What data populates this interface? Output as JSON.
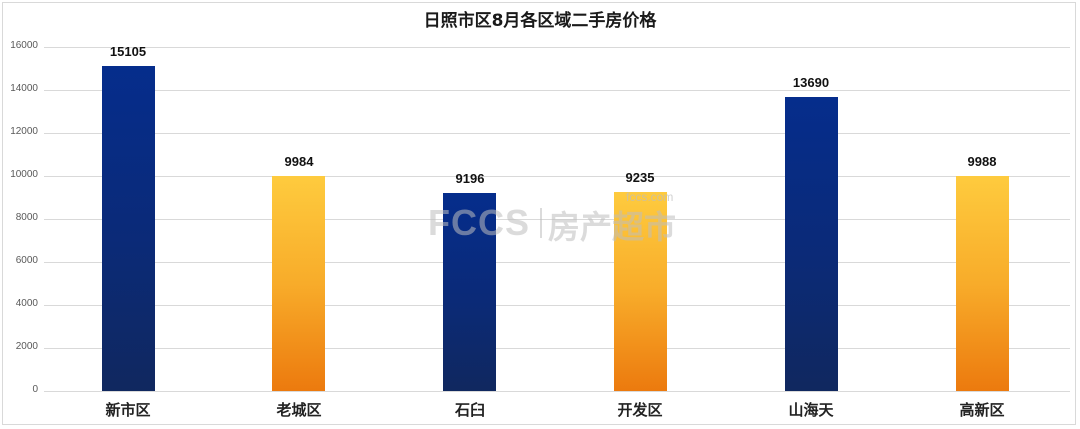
{
  "chart_data": {
    "type": "bar",
    "title": "日照市区8月各区域二手房价格",
    "xlabel": "",
    "ylabel": "",
    "categories": [
      "新市区",
      "老城区",
      "石臼",
      "开发区",
      "山海天",
      "高新区"
    ],
    "values": [
      15105,
      9984,
      9196,
      9235,
      13690,
      9988
    ],
    "bar_colors": [
      "blue",
      "orange",
      "blue",
      "orange",
      "blue",
      "orange"
    ],
    "colors": {
      "blue_top": "#052d8c",
      "blue_bottom": "#10285f",
      "orange_top": "#fecb3e",
      "orange_bottom": "#ec7a0e"
    },
    "ylim": [
      0,
      16000
    ],
    "yticks": [
      0,
      2000,
      4000,
      6000,
      8000,
      10000,
      12000,
      14000,
      16000
    ],
    "grid": true,
    "legend": "none",
    "data_labels": true
  },
  "watermark": {
    "logo": "FCCS",
    "text": "房产超市",
    "url": "fccs.com"
  }
}
